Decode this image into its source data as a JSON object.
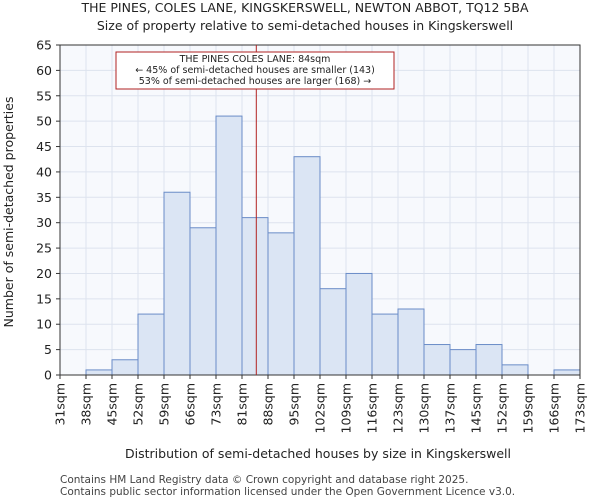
{
  "header": {
    "title": "THE PINES, COLES LANE, KINGSKERSWELL, NEWTON ABBOT, TQ12 5BA",
    "subtitle": "Size of property relative to semi-detached houses in Kingskerswell"
  },
  "footer": {
    "line1": "Contains HM Land Registry data © Crown copyright and database right 2025.",
    "line2": "Contains public sector information licensed under the Open Government Licence v3.0."
  },
  "chart_data": {
    "type": "bar",
    "title": "Size of property relative to semi-detached houses in Kingskerswell",
    "xlabel": "Distribution of semi-detached houses by size in Kingskerswell",
    "ylabel": "Number of semi-detached properties",
    "x_tick_labels": [
      "31sqm",
      "38sqm",
      "45sqm",
      "52sqm",
      "59sqm",
      "66sqm",
      "73sqm",
      "81sqm",
      "88sqm",
      "95sqm",
      "102sqm",
      "109sqm",
      "116sqm",
      "123sqm",
      "130sqm",
      "137sqm",
      "145sqm",
      "152sqm",
      "159sqm",
      "166sqm",
      "173sqm"
    ],
    "values": [
      0,
      1,
      3,
      12,
      36,
      29,
      51,
      31,
      28,
      43,
      17,
      20,
      12,
      13,
      6,
      5,
      6,
      2,
      0,
      1
    ],
    "ylim": [
      0,
      65
    ],
    "yticks": [
      0,
      5,
      10,
      15,
      20,
      25,
      30,
      35,
      40,
      45,
      50,
      55,
      60,
      65
    ],
    "grid": true,
    "colors": {
      "bar_fill": "#dbe5f4",
      "bar_edge": "#6a8cc7",
      "marker": "#b22222"
    },
    "marker": {
      "value_bin_position": 7.55,
      "label_lines": [
        "THE PINES COLES LANE: 84sqm",
        "← 45% of semi-detached houses are smaller (143)",
        "53% of semi-detached houses are larger (168) →"
      ]
    }
  }
}
